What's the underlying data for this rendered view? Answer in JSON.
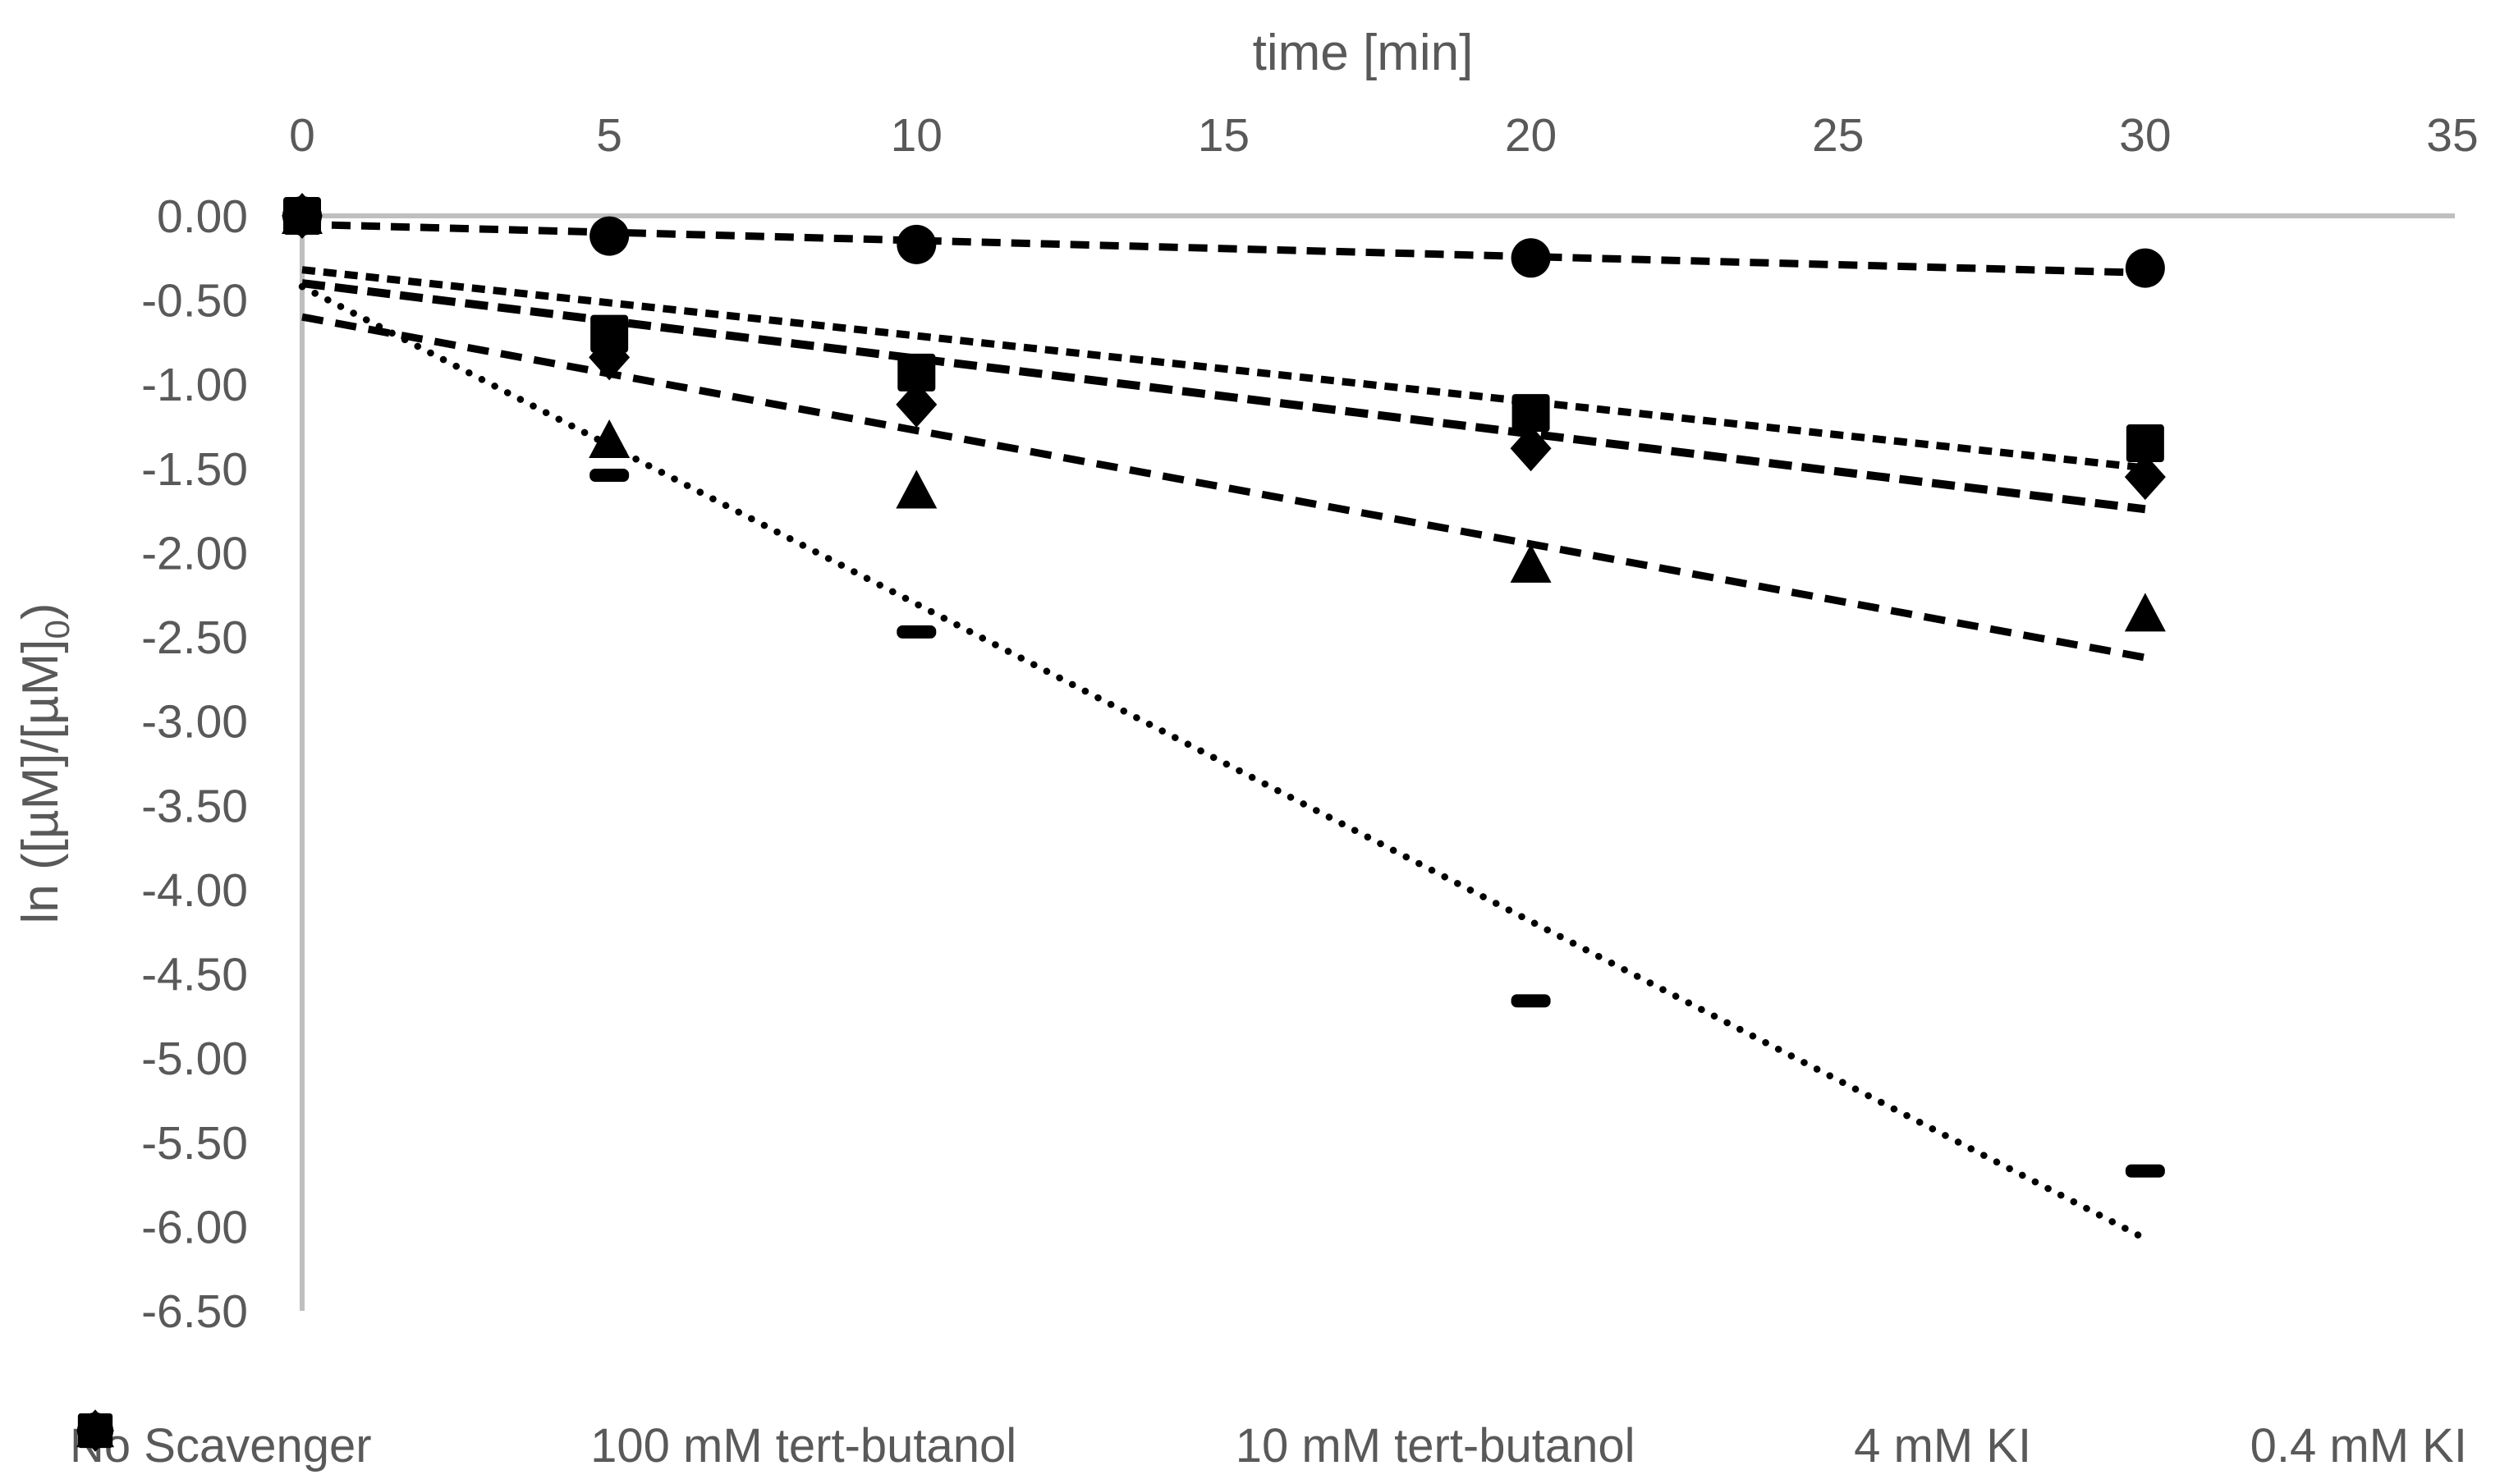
{
  "chart_data": {
    "type": "scatter",
    "title": "time [min]",
    "xlabel": "time [min]",
    "ylabel": "ln ([µM]/[µM])0",
    "y_label_parts": {
      "prefix": "ln ([µM]/[µM]",
      "sub": "0",
      "suffix": ")"
    },
    "x_ticks": [
      "0",
      "5",
      "10",
      "15",
      "20",
      "25",
      "30",
      "35"
    ],
    "y_ticks": [
      "0.00",
      "-0.50",
      "-1.00",
      "-1.50",
      "-2.00",
      "-2.50",
      "-3.00",
      "-3.50",
      "-4.00",
      "-4.50",
      "-5.00",
      "-5.50",
      "-6.00",
      "-6.50"
    ],
    "xlim": [
      0,
      35
    ],
    "ylim": [
      -6.5,
      0
    ],
    "grid": false,
    "legend_position": "bottom",
    "x": [
      0,
      5,
      10,
      20,
      30
    ],
    "series": [
      {
        "name": "No Scavenger",
        "marker": "dash",
        "line_style": "dotted",
        "values": [
          0.0,
          -1.54,
          -2.47,
          -4.66,
          -5.67
        ],
        "trend": {
          "slope": -0.1884,
          "intercept": -0.42,
          "t_start": 0,
          "t_end": 30
        }
      },
      {
        "name": "100 mM tert-butanol",
        "marker": "diamond",
        "line_style": "dash-long",
        "values": [
          0.0,
          -0.84,
          -1.12,
          -1.38,
          -1.55
        ],
        "trend": {
          "slope": -0.0447,
          "intercept": -0.4,
          "t_start": 0,
          "t_end": 30
        }
      },
      {
        "name": "10 mM tert-butanol",
        "marker": "triangle",
        "line_style": "dash-xl",
        "values": [
          0.0,
          -1.33,
          -1.63,
          -2.07,
          -2.36
        ],
        "trend": {
          "slope": -0.0674,
          "intercept": -0.6,
          "t_start": 0,
          "t_end": 30
        }
      },
      {
        "name": "4 mM KI",
        "marker": "circle",
        "line_style": "dash",
        "values": [
          0.0,
          -0.12,
          -0.17,
          -0.25,
          -0.31
        ],
        "trend": {
          "slope": -0.0096,
          "intercept": -0.05,
          "t_start": 0,
          "t_end": 30
        }
      },
      {
        "name": "0.4 mM KI",
        "marker": "square",
        "line_style": "dash-short",
        "values": [
          0.0,
          -0.7,
          -0.93,
          -1.17,
          -1.35
        ],
        "trend": {
          "slope": -0.0392,
          "intercept": -0.32,
          "t_start": 0,
          "t_end": 30
        }
      }
    ]
  },
  "colors": {
    "marker": "#000000",
    "axis_line": "#BFBFBF",
    "text": "#595959",
    "background": "#FFFFFF"
  }
}
